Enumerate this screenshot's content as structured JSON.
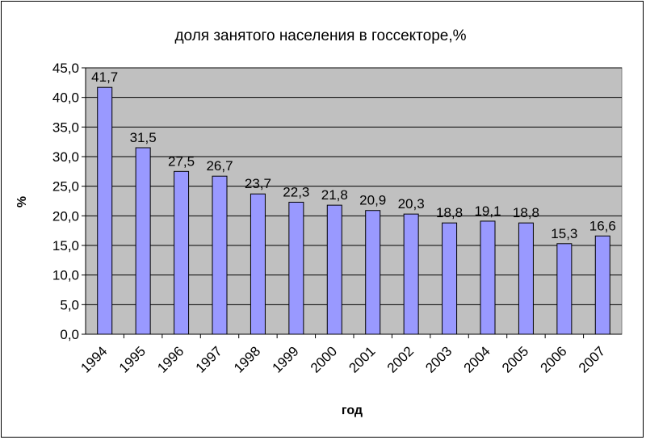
{
  "chart_data": {
    "type": "bar",
    "title": "доля занятого населения в госсекторе,%",
    "xlabel": "год",
    "ylabel": "%",
    "categories": [
      "1994",
      "1995",
      "1996",
      "1997",
      "1998",
      "1999",
      "2000",
      "2001",
      "2002",
      "2003",
      "2004",
      "2005",
      "2006",
      "2007"
    ],
    "values": [
      41.7,
      31.5,
      27.5,
      26.7,
      23.7,
      22.3,
      21.8,
      20.9,
      20.3,
      18.8,
      19.1,
      18.8,
      15.3,
      16.6
    ],
    "data_labels": [
      "41,7",
      "31,5",
      "27,5",
      "26,7",
      "23,7",
      "22,3",
      "21,8",
      "20,9",
      "20,3",
      "18,8",
      "19,1",
      "18,8",
      "15,3",
      "16,6"
    ],
    "yticks": [
      "0,0",
      "5,0",
      "10,0",
      "15,0",
      "20,0",
      "25,0",
      "30,0",
      "35,0",
      "40,0",
      "45,0"
    ],
    "ylim": [
      0,
      45
    ],
    "grid": true,
    "legend": "none",
    "colors": {
      "bar_fill": "#9999ff",
      "bar_stroke": "#000000",
      "plot_background": "#c0c0c0",
      "gridline": "#000000"
    }
  }
}
